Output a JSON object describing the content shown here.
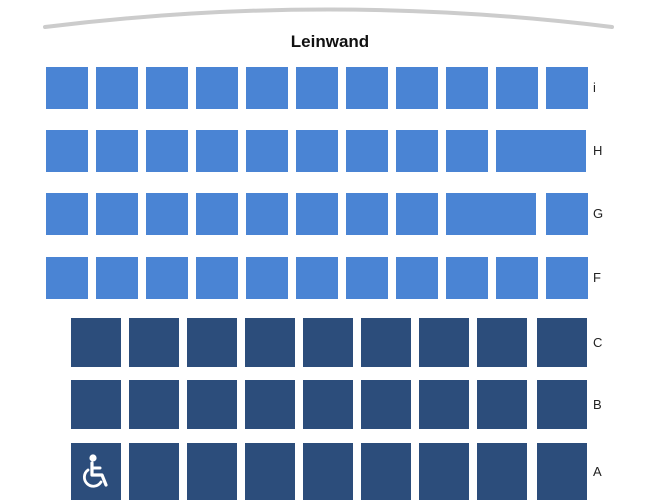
{
  "screen": {
    "label": "Leinwand"
  },
  "rows": [
    {
      "label": "i",
      "seats": 11,
      "style": "light"
    },
    {
      "label": "H",
      "seats": 10,
      "style": "light"
    },
    {
      "label": "G",
      "seats": 10,
      "style": "light"
    },
    {
      "label": "F",
      "seats": 11,
      "style": "light"
    },
    {
      "label": "C",
      "seats": 9,
      "style": "dark"
    },
    {
      "label": "B",
      "seats": 9,
      "style": "dark"
    },
    {
      "label": "A",
      "seats": 9,
      "style": "dark",
      "first_seat_icon": "wheelchair-icon"
    }
  ],
  "colors": {
    "available_light": "#4a84d4",
    "available_dark": "#2c4d7b",
    "screen_arc": "#cccccc"
  }
}
